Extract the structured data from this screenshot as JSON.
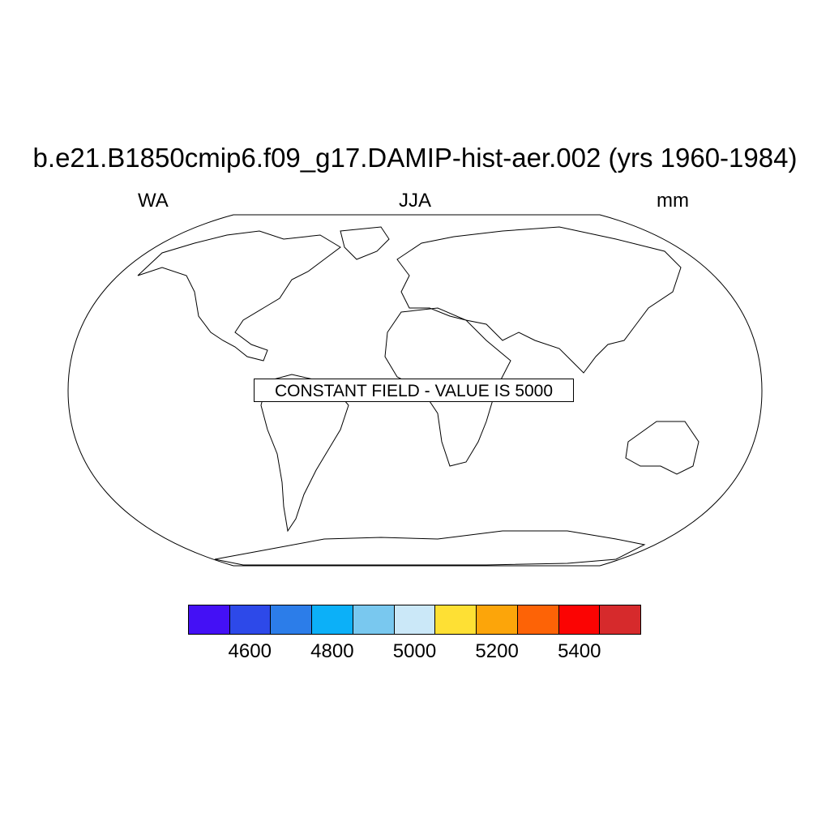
{
  "title": "b.e21.B1850cmip6.f09_g17.DAMIP-hist-aer.002 (yrs 1960-1984)",
  "left_label": "WA",
  "center_label": "JJA",
  "right_label": "mm",
  "message": "CONSTANT FIELD - VALUE IS 5000",
  "projection": "robinson",
  "colorbar": {
    "colors": [
      "#4410f5",
      "#2d49e9",
      "#2c7de9",
      "#0cb0f8",
      "#79c8ef",
      "#cbe8f8",
      "#fee034",
      "#fca50a",
      "#fd6306",
      "#fb0403",
      "#d62a2c"
    ],
    "tick_labels": [
      "4600",
      "4800",
      "5000",
      "5200",
      "5400"
    ]
  }
}
